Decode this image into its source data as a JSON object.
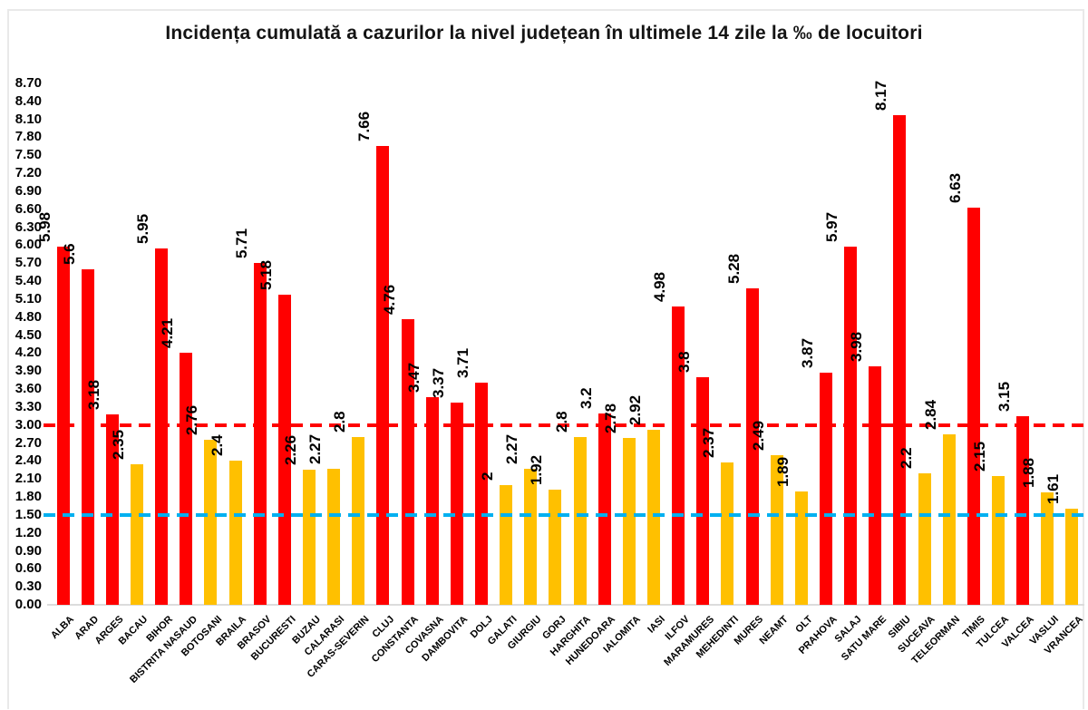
{
  "chart_data": {
    "type": "bar",
    "title": "Incidența cumulată a cazurilor la nivel județean în ultimele 14 zile la ‰ de locuitori",
    "categories": [
      "ALBA",
      "ARAD",
      "ARGES",
      "BACAU",
      "BIHOR",
      "BISTRITA NASAUD",
      "BOTOSANI",
      "BRAILA",
      "BRASOV",
      "BUCURESTI",
      "BUZAU",
      "CALARASI",
      "CARAS-SEVERIN",
      "CLUJ",
      "CONSTANTA",
      "COVASNA",
      "DAMBOVITA",
      "DOLJ",
      "GALATI",
      "GIURGIU",
      "GORJ",
      "HARGHITA",
      "HUNEDOARA",
      "IALOMITA",
      "IASI",
      "ILFOV",
      "MARAMURES",
      "MEHEDINTI",
      "MURES",
      "NEAMT",
      "OLT",
      "PRAHOVA",
      "SALAJ",
      "SATU MARE",
      "SIBIU",
      "SUCEAVA",
      "TELEORMAN",
      "TIMIS",
      "TULCEA",
      "VALCEA",
      "VASLUI",
      "VRANCEA"
    ],
    "values": [
      5.98,
      5.6,
      3.18,
      2.35,
      5.95,
      4.21,
      2.76,
      2.4,
      5.71,
      5.18,
      2.26,
      2.27,
      2.8,
      7.66,
      4.76,
      3.47,
      3.37,
      3.71,
      2,
      2.27,
      1.92,
      2.8,
      3.2,
      2.78,
      2.92,
      4.98,
      3.8,
      2.37,
      5.28,
      2.49,
      1.89,
      3.87,
      5.97,
      3.98,
      8.17,
      2.2,
      2.84,
      6.63,
      2.15,
      3.15,
      1.88,
      1.61
    ],
    "xlabel": "",
    "ylabel": "",
    "y_axis": {
      "min": 0.0,
      "max": 8.7,
      "step": 0.3,
      "tick_format": "two-decimals"
    },
    "thresholds": [
      {
        "label": "red-threshold-3.00",
        "value": 3.0,
        "color": "#ff0000",
        "style": "dashed"
      },
      {
        "label": "blue-threshold-1.50",
        "value": 1.5,
        "color": "#00b0f0",
        "style": "dashed"
      }
    ],
    "color_rule": "bars with value >= 3.00 are red, below 3.00 are gold",
    "colors": {
      "bar_above_3": "#ff0000",
      "bar_below_3": "#ffc000",
      "text": "#000000",
      "baseline": "#dcdcdc",
      "frame_border": "#e9e9e9"
    },
    "grid": "off",
    "legend": null,
    "value_label_style": "rotated 90° above each bar",
    "category_label_style": "rotated 45° below axis"
  }
}
